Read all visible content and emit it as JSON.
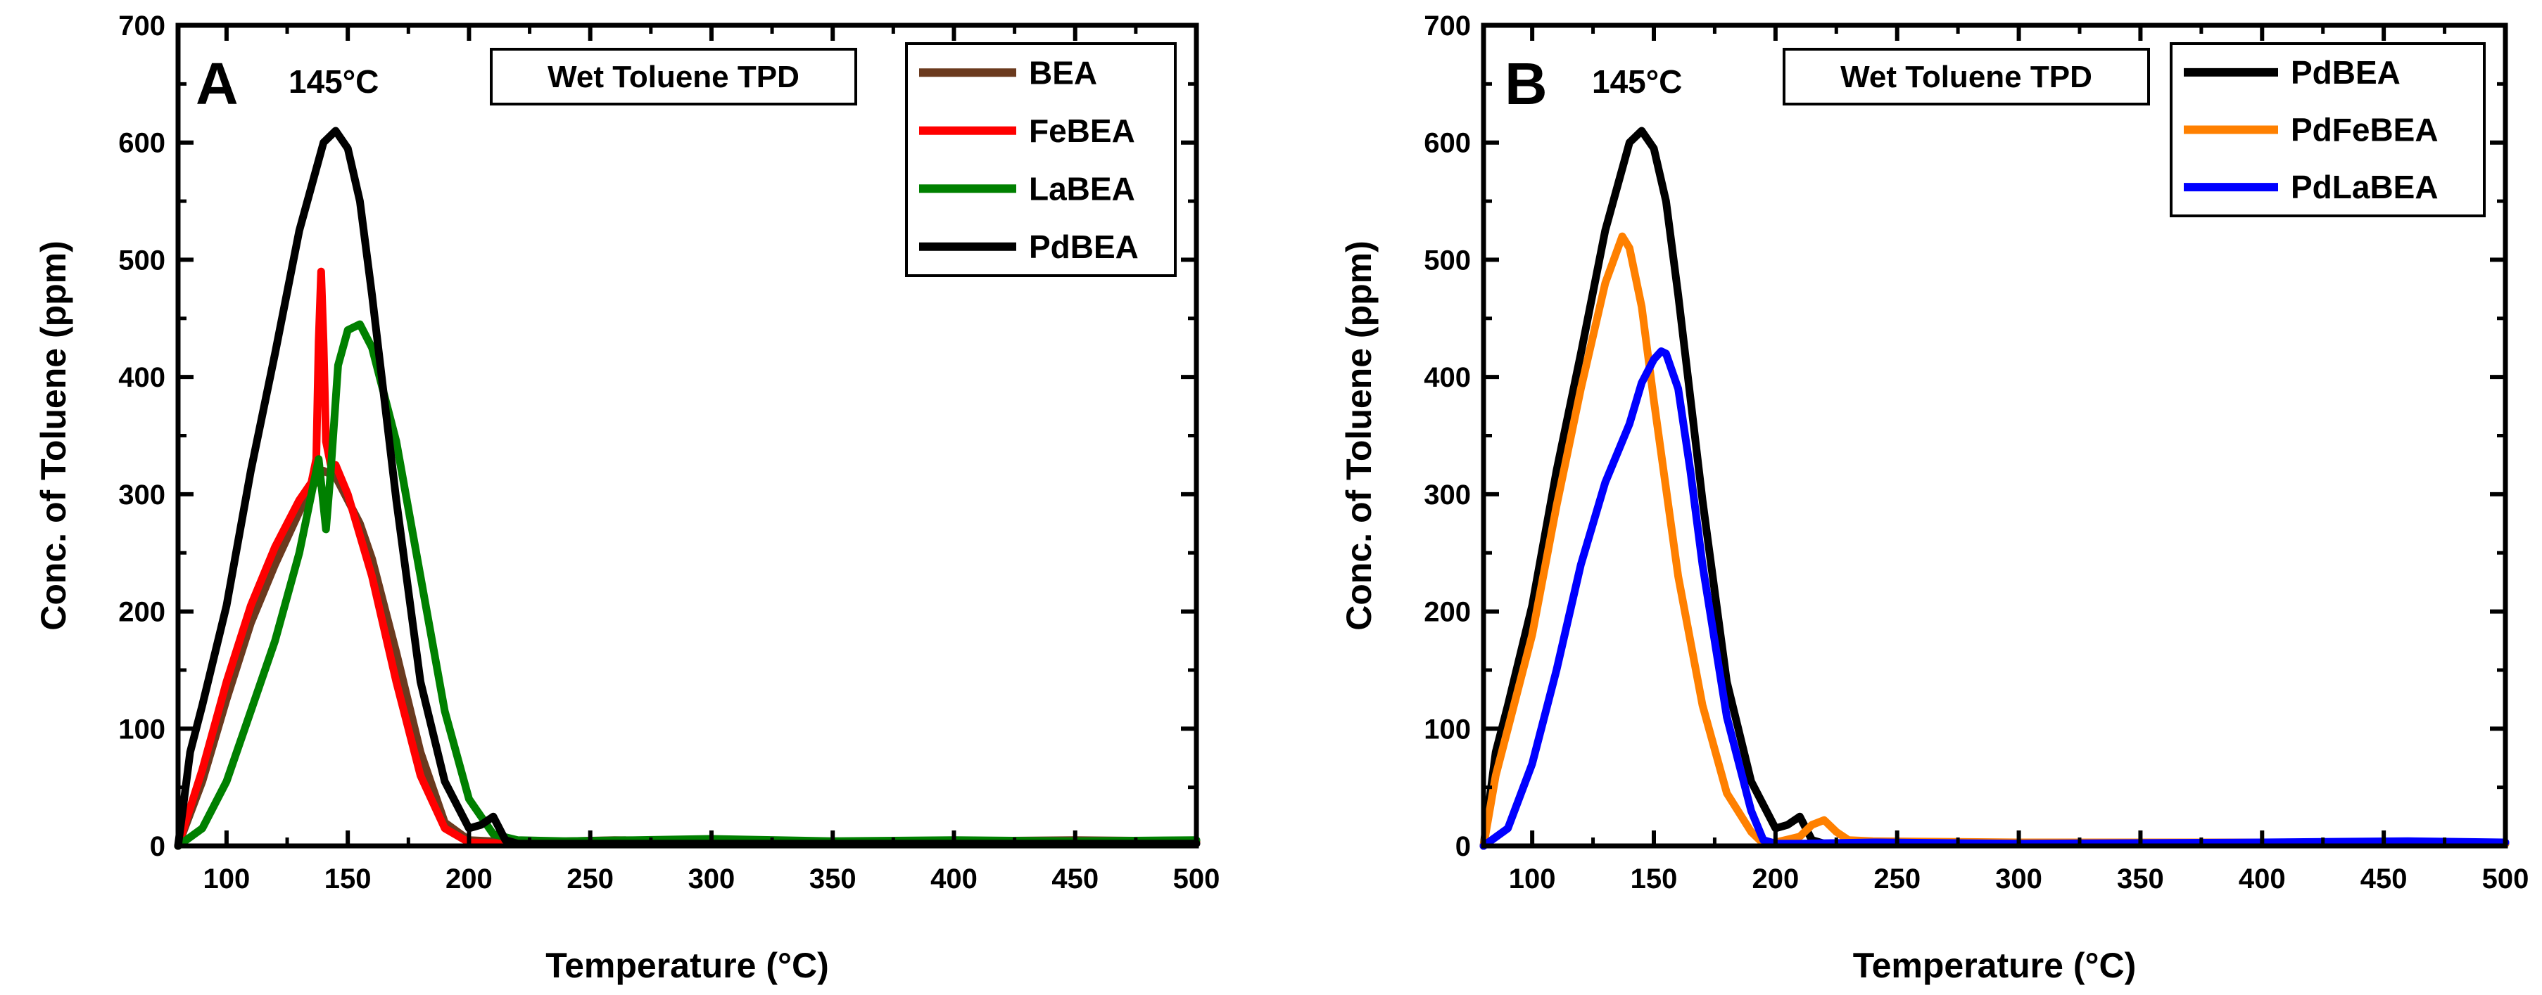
{
  "chart_data": [
    {
      "type": "line",
      "panel_label": "A",
      "peak_annotation": "145°C",
      "inset_title": "Wet Toluene TPD",
      "xlabel": "Temperature (°C)",
      "ylabel": "Conc. of Toluene (ppm)",
      "xlim": [
        80,
        500
      ],
      "ylim": [
        0,
        700
      ],
      "xticks": [
        100,
        150,
        200,
        250,
        300,
        350,
        400,
        450,
        500
      ],
      "yticks": [
        0,
        100,
        200,
        300,
        400,
        500,
        600,
        700
      ],
      "legend_position": "top-right",
      "series": [
        {
          "name": "BEA",
          "color": "#6b3a1e",
          "x": [
            80,
            90,
            100,
            110,
            120,
            130,
            135,
            140,
            145,
            150,
            155,
            160,
            170,
            180,
            190,
            200,
            220,
            260,
            300,
            350,
            400,
            450,
            500
          ],
          "y": [
            0,
            55,
            125,
            190,
            240,
            285,
            305,
            320,
            315,
            295,
            275,
            245,
            165,
            80,
            20,
            5,
            3,
            5,
            4,
            3,
            4,
            5,
            4
          ]
        },
        {
          "name": "FeBEA",
          "color": "#ff0000",
          "x": [
            80,
            90,
            100,
            110,
            120,
            130,
            135,
            137,
            138,
            139,
            140,
            141,
            143,
            145,
            150,
            160,
            170,
            180,
            190,
            200,
            220,
            300,
            400,
            500
          ],
          "y": [
            0,
            65,
            140,
            205,
            255,
            295,
            310,
            330,
            430,
            490,
            430,
            345,
            325,
            325,
            300,
            230,
            140,
            60,
            15,
            3,
            2,
            3,
            3,
            3
          ]
        },
        {
          "name": "LaBEA",
          "color": "#008000",
          "x": [
            80,
            90,
            100,
            110,
            120,
            130,
            135,
            138,
            141,
            143,
            146,
            150,
            155,
            160,
            170,
            180,
            190,
            200,
            210,
            220,
            240,
            300,
            350,
            400,
            450,
            500
          ],
          "y": [
            0,
            15,
            55,
            115,
            175,
            250,
            300,
            330,
            270,
            320,
            410,
            440,
            445,
            425,
            345,
            230,
            115,
            40,
            10,
            5,
            4,
            6,
            4,
            5,
            4,
            5
          ]
        },
        {
          "name": "PdBEA",
          "color": "#000000",
          "x": [
            80,
            85,
            90,
            100,
            110,
            120,
            130,
            140,
            145,
            150,
            155,
            160,
            170,
            180,
            190,
            200,
            205,
            210,
            215,
            220,
            240,
            300,
            400,
            500
          ],
          "y": [
            0,
            80,
            120,
            205,
            320,
            420,
            525,
            600,
            610,
            595,
            550,
            470,
            295,
            140,
            55,
            15,
            18,
            25,
            5,
            2,
            2,
            2,
            2,
            2
          ]
        }
      ]
    },
    {
      "type": "line",
      "panel_label": "B",
      "peak_annotation": "145°C",
      "inset_title": "Wet Toluene TPD",
      "xlabel": "Temperature (°C)",
      "ylabel": "Conc. of Toluene (ppm)",
      "xlim": [
        80,
        500
      ],
      "ylim": [
        0,
        700
      ],
      "xticks": [
        100,
        150,
        200,
        250,
        300,
        350,
        400,
        450,
        500
      ],
      "yticks": [
        0,
        100,
        200,
        300,
        400,
        500,
        600,
        700
      ],
      "legend_position": "top-right",
      "series": [
        {
          "name": "PdBEA",
          "color": "#000000",
          "x": [
            80,
            85,
            90,
            100,
            110,
            120,
            130,
            140,
            145,
            150,
            155,
            160,
            170,
            180,
            190,
            200,
            205,
            210,
            215,
            220,
            240,
            300,
            400,
            500
          ],
          "y": [
            0,
            80,
            120,
            205,
            320,
            420,
            525,
            600,
            610,
            595,
            550,
            470,
            295,
            140,
            55,
            15,
            18,
            25,
            5,
            2,
            2,
            2,
            2,
            2
          ]
        },
        {
          "name": "PdFeBEA",
          "color": "#ff8000",
          "x": [
            80,
            85,
            90,
            100,
            110,
            120,
            130,
            137,
            140,
            145,
            150,
            160,
            170,
            180,
            190,
            195,
            200,
            210,
            215,
            220,
            225,
            230,
            240,
            300,
            400,
            450,
            500
          ],
          "y": [
            0,
            60,
            100,
            180,
            290,
            390,
            480,
            520,
            510,
            460,
            380,
            230,
            120,
            45,
            12,
            2,
            3,
            8,
            18,
            22,
            12,
            5,
            4,
            3,
            3,
            2,
            2
          ]
        },
        {
          "name": "PdLaBEA",
          "color": "#0000ff",
          "x": [
            80,
            90,
            100,
            110,
            120,
            130,
            140,
            145,
            150,
            153,
            155,
            160,
            165,
            170,
            180,
            190,
            195,
            200,
            210,
            240,
            300,
            400,
            460,
            500
          ],
          "y": [
            0,
            15,
            70,
            150,
            240,
            310,
            360,
            395,
            415,
            422,
            420,
            390,
            320,
            240,
            110,
            30,
            5,
            2,
            2,
            3,
            2,
            3,
            4,
            3
          ]
        }
      ]
    }
  ]
}
